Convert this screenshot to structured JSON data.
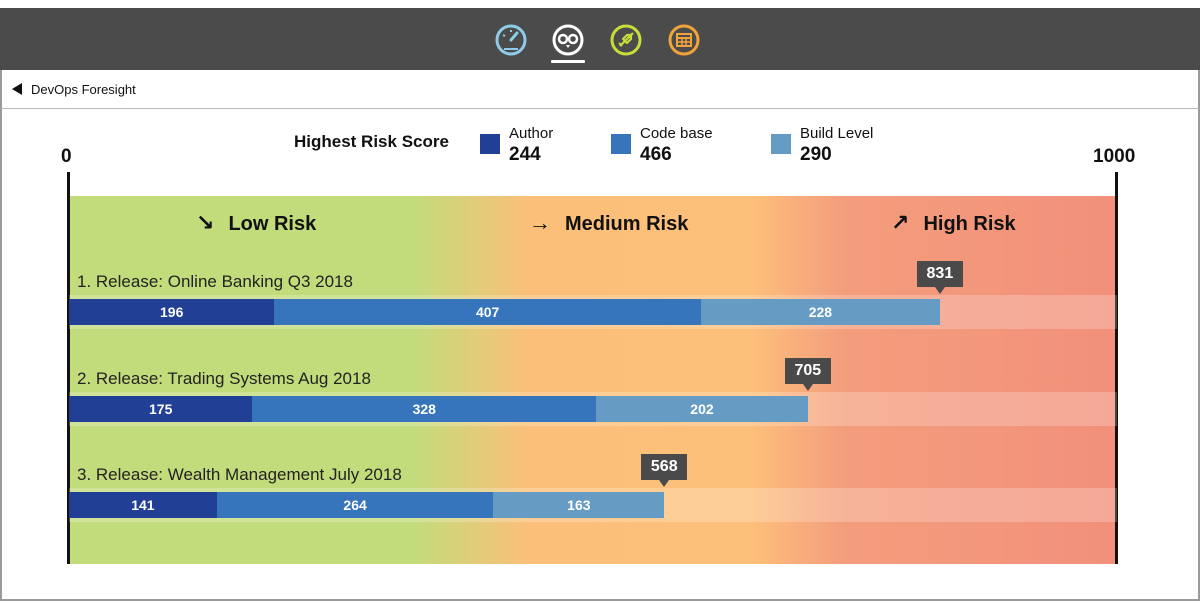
{
  "nav": {
    "icons": [
      {
        "name": "speedometer-icon",
        "color": "#8ecbe8",
        "active": false
      },
      {
        "name": "owl-icon",
        "color": "#ffffff",
        "active": true
      },
      {
        "name": "rocket-icon",
        "color": "#c9dd3a",
        "active": false
      },
      {
        "name": "calendar-grid-icon",
        "color": "#f2a33a",
        "active": false
      }
    ]
  },
  "breadcrumb": {
    "label": "DevOps Foresight"
  },
  "legend": {
    "title": "Highest Risk Score",
    "items": [
      {
        "name": "Author",
        "value": "244",
        "color": "#213f94"
      },
      {
        "name": "Code base",
        "value": "466",
        "color": "#3674bb"
      },
      {
        "name": "Build Level",
        "value": "290",
        "color": "#669cc4"
      }
    ]
  },
  "axis": {
    "min_label": "0",
    "max_label": "1000"
  },
  "zones": {
    "low": {
      "label": "Low Risk",
      "arrow": "↘"
    },
    "medium": {
      "label": "Medium Risk",
      "arrow": "→"
    },
    "high": {
      "label": "High Risk",
      "arrow": "↗"
    }
  },
  "chart_data": {
    "type": "bar",
    "orientation": "horizontal",
    "stacked": true,
    "xlim": [
      0,
      1000
    ],
    "categories": [
      "1. Release: Online Banking Q3 2018",
      "2. Release: Trading Systems Aug 2018",
      "3. Release: Wealth Management July 2018"
    ],
    "series": [
      {
        "name": "Author",
        "values": [
          196,
          175,
          141
        ],
        "color": "#213f94"
      },
      {
        "name": "Code base",
        "values": [
          407,
          328,
          264
        ],
        "color": "#3674bb"
      },
      {
        "name": "Build Level",
        "values": [
          228,
          202,
          163
        ],
        "color": "#669cc4"
      }
    ],
    "totals": [
      831,
      705,
      568
    ]
  }
}
